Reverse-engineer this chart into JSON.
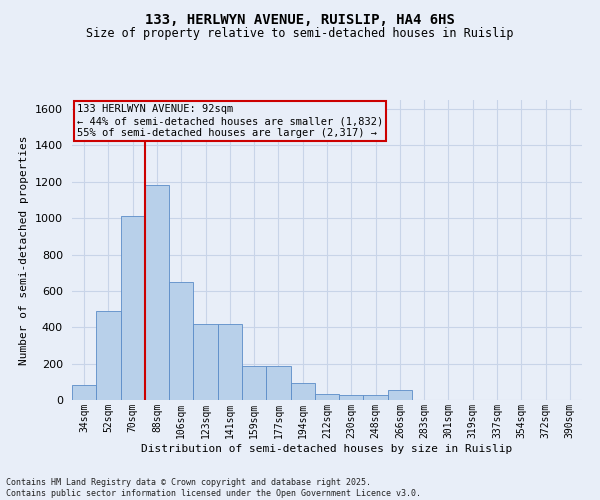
{
  "title_line1": "133, HERLWYN AVENUE, RUISLIP, HA4 6HS",
  "title_line2": "Size of property relative to semi-detached houses in Ruislip",
  "xlabel": "Distribution of semi-detached houses by size in Ruislip",
  "ylabel": "Number of semi-detached properties",
  "categories": [
    "34sqm",
    "52sqm",
    "70sqm",
    "88sqm",
    "106sqm",
    "123sqm",
    "141sqm",
    "159sqm",
    "177sqm",
    "194sqm",
    "212sqm",
    "230sqm",
    "248sqm",
    "266sqm",
    "283sqm",
    "301sqm",
    "319sqm",
    "337sqm",
    "354sqm",
    "372sqm",
    "390sqm"
  ],
  "values": [
    85,
    490,
    1010,
    1185,
    650,
    420,
    420,
    185,
    185,
    95,
    32,
    30,
    30,
    55,
    0,
    0,
    0,
    0,
    0,
    0,
    0
  ],
  "bar_color": "#b8d0ea",
  "bar_edge_color": "#5b8cc8",
  "grid_color": "#c8d4e8",
  "background_color": "#e8eef8",
  "vline_color": "#cc0000",
  "vline_index": 3,
  "annotation_text_line1": "133 HERLWYN AVENUE: 92sqm",
  "annotation_text_line2": "← 44% of semi-detached houses are smaller (1,832)",
  "annotation_text_line3": "55% of semi-detached houses are larger (2,317) →",
  "annotation_box_color": "#cc0000",
  "ylim_max": 1650,
  "yticks": [
    0,
    200,
    400,
    600,
    800,
    1000,
    1200,
    1400,
    1600
  ],
  "footer_line1": "Contains HM Land Registry data © Crown copyright and database right 2025.",
  "footer_line2": "Contains public sector information licensed under the Open Government Licence v3.0."
}
